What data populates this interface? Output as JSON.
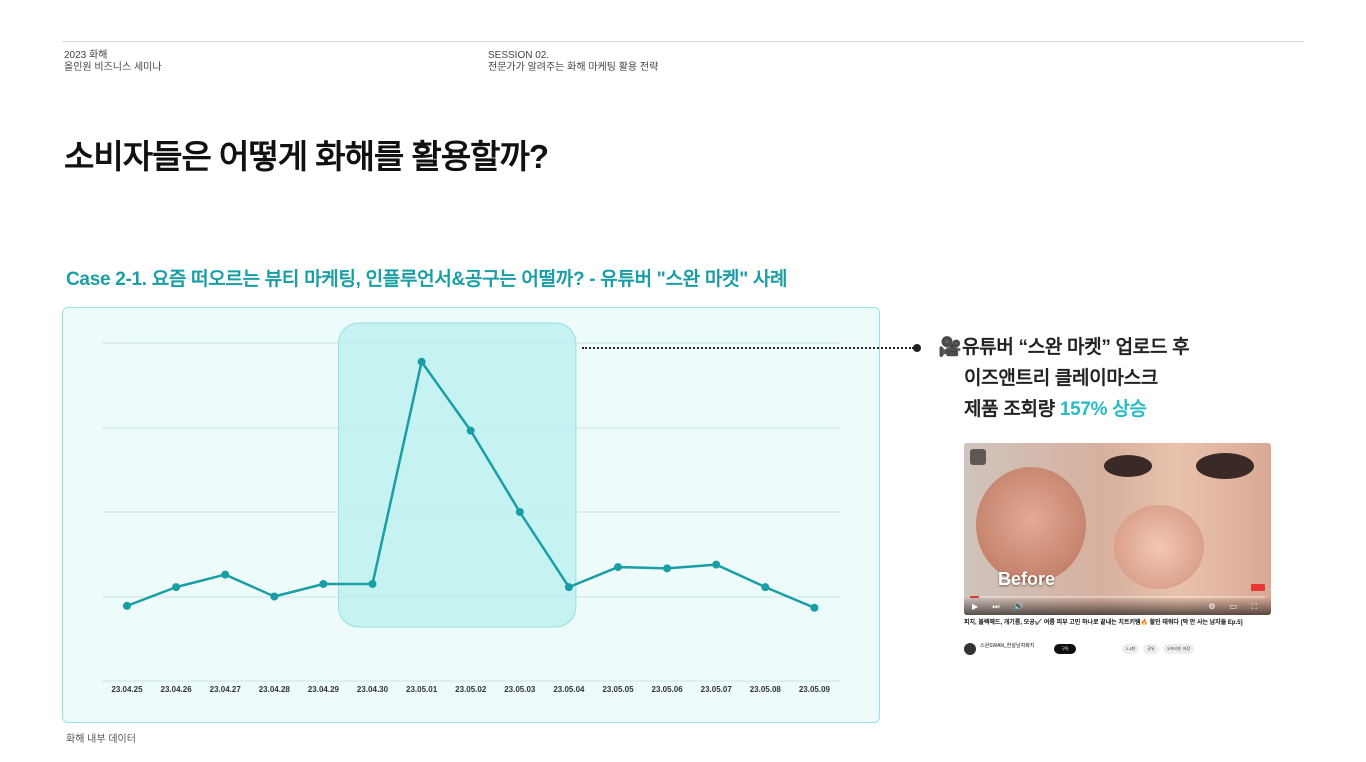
{
  "header": {
    "left_line1": "2023 화해",
    "left_line2": "올인원 비즈니스 세미나",
    "mid_line1": "SESSION 02.",
    "mid_line2": "전문가가 알려주는 화해 마케팅 활용 전략"
  },
  "title": "소비자들은 어떻게 화해를 활용할까?",
  "case_title": "Case 2-1. 요즘 떠오르는 뷰티 마케팅, 인플루언서&공구는 어떨까? - 유튜버 \"스완 마켓\" 사례",
  "callout": {
    "icon": "video-camera-icon",
    "line1": "유튜버 “스완 마켓” 업로드 후",
    "line2": "이즈앤트리 클레이마스크",
    "line3_prefix": "제품 조회량 ",
    "line3_highlight": "157% 상승"
  },
  "source_note": "화해 내부 데이터",
  "video": {
    "overlay_text": "Before",
    "title": "피지, 블랙헤드, 개기름, 모공✔️ 여름 피부 고민 하나로 끝내는 치트키템🔥 할인 태워다 [딱 안 사는 남자들 Ep.5]",
    "channel": "스완SWAN_한살남자화지",
    "subscribe": "구독",
    "likes": "2.4천",
    "share": "공유",
    "offline": "오프라인 저장"
  },
  "colors": {
    "accent": "#1a9ea6",
    "line": "#1a9ea6",
    "highlight_fill": "#c2f1f2",
    "highlight_stroke": "#8fdcdf",
    "chart_bg": "#edfcfa"
  },
  "chart_data": {
    "type": "line",
    "title": "",
    "xlabel": "",
    "ylabel": "",
    "categories": [
      "23.04.25",
      "23.04.26",
      "23.04.27",
      "23.04.28",
      "23.04.29",
      "23.04.30",
      "23.05.01",
      "23.05.02",
      "23.05.03",
      "23.05.04",
      "23.05.05",
      "23.05.06",
      "23.05.07",
      "23.05.08",
      "23.05.09"
    ],
    "series": [
      {
        "values": [
          0.3,
          0.6,
          0.8,
          0.45,
          0.65,
          0.65,
          4.2,
          3.1,
          1.8,
          0.6,
          0.92,
          0.9,
          0.96,
          0.6,
          0.27
        ]
      }
    ],
    "ylim": [
      -0.9,
      4.5
    ],
    "grid": true,
    "y_tick_labels_shown": false,
    "highlight_range": [
      "23.04.30",
      "23.05.04"
    ]
  }
}
